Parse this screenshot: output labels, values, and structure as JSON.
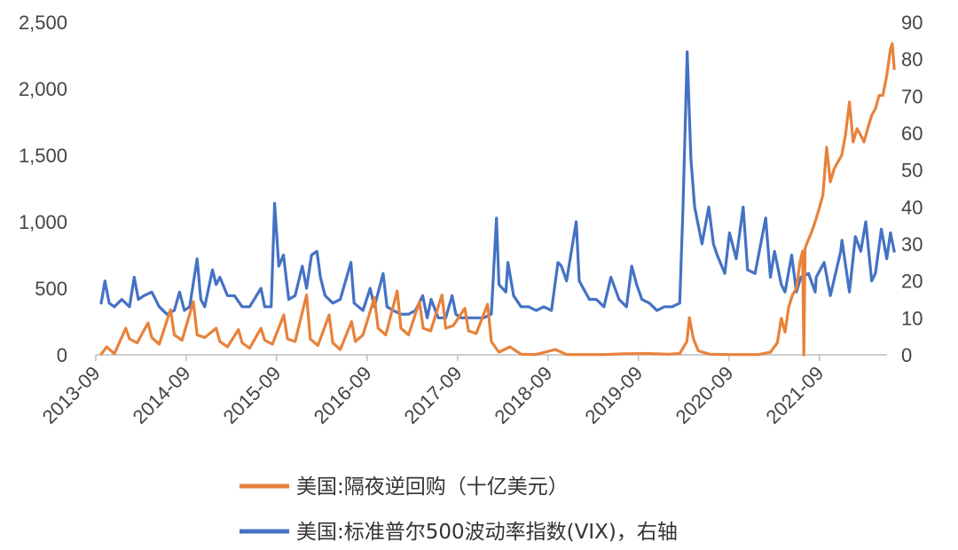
{
  "chart_data": {
    "type": "line",
    "title": "",
    "xlabel": "",
    "ylabel_left": "",
    "ylabel_right": "",
    "x_ticks": [
      "2013-09",
      "2014-09",
      "2015-09",
      "2016-09",
      "2017-09",
      "2018-09",
      "2019-09",
      "2020-09",
      "2021-09"
    ],
    "x_range": [
      "2013-09",
      "2022-06"
    ],
    "y_left": {
      "ticks": [
        0,
        500,
        1000,
        1500,
        2000,
        2500
      ],
      "tick_labels": [
        "0",
        "500",
        "1,000",
        "1,500",
        "2,000",
        "2,500"
      ],
      "range": [
        0,
        2500
      ]
    },
    "y_right": {
      "ticks": [
        0,
        10,
        20,
        30,
        40,
        50,
        60,
        70,
        80,
        90
      ],
      "tick_labels": [
        "0",
        "10",
        "20",
        "30",
        "40",
        "50",
        "60",
        "70",
        "80",
        "90"
      ],
      "range": [
        0,
        90
      ]
    },
    "grid": false,
    "legend_position": "bottom",
    "series": [
      {
        "name": "美国:隔夜逆回购（十亿美元）",
        "axis": "left",
        "color": "#E8823A",
        "points": [
          [
            "2013-09-23",
            5
          ],
          [
            "2013-10-15",
            60
          ],
          [
            "2013-11-15",
            8
          ],
          [
            "2013-12-31",
            200
          ],
          [
            "2014-01-15",
            120
          ],
          [
            "2014-02-15",
            90
          ],
          [
            "2014-03-31",
            240
          ],
          [
            "2014-04-15",
            130
          ],
          [
            "2014-05-15",
            80
          ],
          [
            "2014-06-30",
            340
          ],
          [
            "2014-07-15",
            150
          ],
          [
            "2014-08-15",
            110
          ],
          [
            "2014-09-30",
            400
          ],
          [
            "2014-10-15",
            150
          ],
          [
            "2014-11-15",
            130
          ],
          [
            "2014-12-31",
            200
          ],
          [
            "2015-01-15",
            100
          ],
          [
            "2015-02-15",
            60
          ],
          [
            "2015-03-31",
            190
          ],
          [
            "2015-04-15",
            90
          ],
          [
            "2015-05-15",
            50
          ],
          [
            "2015-06-30",
            200
          ],
          [
            "2015-07-15",
            110
          ],
          [
            "2015-08-15",
            80
          ],
          [
            "2015-09-30",
            300
          ],
          [
            "2015-10-15",
            120
          ],
          [
            "2015-11-15",
            100
          ],
          [
            "2015-12-31",
            450
          ],
          [
            "2016-01-15",
            120
          ],
          [
            "2016-02-15",
            70
          ],
          [
            "2016-03-31",
            300
          ],
          [
            "2016-04-15",
            90
          ],
          [
            "2016-05-15",
            40
          ],
          [
            "2016-06-30",
            250
          ],
          [
            "2016-07-15",
            100
          ],
          [
            "2016-08-15",
            150
          ],
          [
            "2016-09-30",
            430
          ],
          [
            "2016-10-15",
            200
          ],
          [
            "2016-11-15",
            150
          ],
          [
            "2016-12-31",
            480
          ],
          [
            "2017-01-15",
            200
          ],
          [
            "2017-02-15",
            150
          ],
          [
            "2017-03-31",
            400
          ],
          [
            "2017-04-15",
            200
          ],
          [
            "2017-05-15",
            180
          ],
          [
            "2017-06-30",
            450
          ],
          [
            "2017-07-15",
            200
          ],
          [
            "2017-08-15",
            220
          ],
          [
            "2017-09-30",
            350
          ],
          [
            "2017-10-15",
            180
          ],
          [
            "2017-11-15",
            160
          ],
          [
            "2017-12-31",
            380
          ],
          [
            "2018-01-15",
            100
          ],
          [
            "2018-02-15",
            20
          ],
          [
            "2018-03-31",
            60
          ],
          [
            "2018-05-15",
            5
          ],
          [
            "2018-07-15",
            3
          ],
          [
            "2018-09-30",
            40
          ],
          [
            "2018-11-15",
            3
          ],
          [
            "2019-01-15",
            2
          ],
          [
            "2019-04-15",
            2
          ],
          [
            "2019-06-30",
            8
          ],
          [
            "2019-09-30",
            10
          ],
          [
            "2019-12-31",
            5
          ],
          [
            "2020-02-15",
            10
          ],
          [
            "2020-03-15",
            100
          ],
          [
            "2020-03-25",
            280
          ],
          [
            "2020-04-10",
            120
          ],
          [
            "2020-04-30",
            30
          ],
          [
            "2020-06-15",
            5
          ],
          [
            "2020-09-15",
            2
          ],
          [
            "2020-12-31",
            3
          ],
          [
            "2021-02-15",
            20
          ],
          [
            "2021-03-15",
            90
          ],
          [
            "2021-03-31",
            275
          ],
          [
            "2021-04-15",
            170
          ],
          [
            "2021-04-30",
            360
          ],
          [
            "2021-05-15",
            450
          ],
          [
            "2021-05-31",
            500
          ],
          [
            "2021-06-15",
            700
          ],
          [
            "2021-06-25",
            780
          ],
          [
            "2021-06-30",
            0
          ],
          [
            "2021-07-05",
            800
          ],
          [
            "2021-07-15",
            850
          ],
          [
            "2021-07-31",
            920
          ],
          [
            "2021-08-15",
            1000
          ],
          [
            "2021-08-31",
            1100
          ],
          [
            "2021-09-15",
            1200
          ],
          [
            "2021-09-30",
            1560
          ],
          [
            "2021-10-15",
            1300
          ],
          [
            "2021-10-31",
            1400
          ],
          [
            "2021-11-15",
            1450
          ],
          [
            "2021-11-30",
            1500
          ],
          [
            "2021-12-15",
            1650
          ],
          [
            "2021-12-31",
            1900
          ],
          [
            "2022-01-15",
            1600
          ],
          [
            "2022-01-31",
            1700
          ],
          [
            "2022-02-15",
            1650
          ],
          [
            "2022-02-28",
            1600
          ],
          [
            "2022-03-15",
            1700
          ],
          [
            "2022-03-31",
            1800
          ],
          [
            "2022-04-15",
            1850
          ],
          [
            "2022-04-30",
            1950
          ],
          [
            "2022-05-15",
            1950
          ],
          [
            "2022-05-31",
            2100
          ],
          [
            "2022-06-15",
            2300
          ],
          [
            "2022-06-22",
            2340
          ],
          [
            "2022-06-30",
            2150
          ]
        ]
      },
      {
        "name": "美国:标准普尔500波动率指数(VIX)，右轴",
        "axis": "right",
        "color": "#4472C4",
        "points": [
          [
            "2013-09-23",
            14
          ],
          [
            "2013-10-08",
            20
          ],
          [
            "2013-10-25",
            14
          ],
          [
            "2013-11-15",
            13
          ],
          [
            "2013-12-15",
            15
          ],
          [
            "2014-01-15",
            13
          ],
          [
            "2014-02-03",
            21
          ],
          [
            "2014-02-20",
            15
          ],
          [
            "2014-03-15",
            16
          ],
          [
            "2014-04-15",
            17
          ],
          [
            "2014-05-15",
            13
          ],
          [
            "2014-06-15",
            11
          ],
          [
            "2014-07-15",
            12
          ],
          [
            "2014-08-05",
            17
          ],
          [
            "2014-08-25",
            12
          ],
          [
            "2014-09-15",
            13
          ],
          [
            "2014-10-15",
            26
          ],
          [
            "2014-10-30",
            15
          ],
          [
            "2014-11-15",
            13
          ],
          [
            "2014-12-16",
            23
          ],
          [
            "2014-12-31",
            19
          ],
          [
            "2015-01-15",
            21
          ],
          [
            "2015-02-15",
            16
          ],
          [
            "2015-03-15",
            16
          ],
          [
            "2015-04-15",
            13
          ],
          [
            "2015-05-15",
            13
          ],
          [
            "2015-06-30",
            18
          ],
          [
            "2015-07-15",
            13
          ],
          [
            "2015-08-10",
            13
          ],
          [
            "2015-08-24",
            41
          ],
          [
            "2015-09-10",
            24
          ],
          [
            "2015-09-29",
            27
          ],
          [
            "2015-10-20",
            15
          ],
          [
            "2015-11-15",
            16
          ],
          [
            "2015-12-14",
            24
          ],
          [
            "2015-12-31",
            18
          ],
          [
            "2016-01-20",
            27
          ],
          [
            "2016-02-11",
            28
          ],
          [
            "2016-02-25",
            21
          ],
          [
            "2016-03-15",
            16
          ],
          [
            "2016-04-15",
            14
          ],
          [
            "2016-05-15",
            15
          ],
          [
            "2016-06-27",
            25
          ],
          [
            "2016-07-10",
            14
          ],
          [
            "2016-08-15",
            12
          ],
          [
            "2016-09-13",
            18
          ],
          [
            "2016-09-30",
            13
          ],
          [
            "2016-11-04",
            22
          ],
          [
            "2016-11-20",
            13
          ],
          [
            "2016-12-15",
            12
          ],
          [
            "2017-01-15",
            11
          ],
          [
            "2017-02-15",
            11
          ],
          [
            "2017-03-15",
            12
          ],
          [
            "2017-04-13",
            16
          ],
          [
            "2017-05-01",
            10
          ],
          [
            "2017-05-17",
            15
          ],
          [
            "2017-06-15",
            10
          ],
          [
            "2017-07-15",
            10
          ],
          [
            "2017-08-10",
            16
          ],
          [
            "2017-08-25",
            11
          ],
          [
            "2017-09-15",
            10
          ],
          [
            "2017-10-15",
            10
          ],
          [
            "2017-11-15",
            10
          ],
          [
            "2017-12-15",
            10
          ],
          [
            "2018-01-15",
            11
          ],
          [
            "2018-02-05",
            37
          ],
          [
            "2018-02-15",
            19
          ],
          [
            "2018-03-15",
            17
          ],
          [
            "2018-03-23",
            25
          ],
          [
            "2018-04-15",
            16
          ],
          [
            "2018-05-15",
            13
          ],
          [
            "2018-06-15",
            13
          ],
          [
            "2018-07-15",
            12
          ],
          [
            "2018-08-15",
            13
          ],
          [
            "2018-09-15",
            12
          ],
          [
            "2018-10-11",
            25
          ],
          [
            "2018-10-25",
            24
          ],
          [
            "2018-11-15",
            20
          ],
          [
            "2018-12-24",
            36
          ],
          [
            "2019-01-05",
            20
          ],
          [
            "2019-02-15",
            15
          ],
          [
            "2019-03-15",
            15
          ],
          [
            "2019-04-15",
            13
          ],
          [
            "2019-05-13",
            21
          ],
          [
            "2019-06-15",
            15
          ],
          [
            "2019-07-15",
            13
          ],
          [
            "2019-08-05",
            24
          ],
          [
            "2019-08-25",
            19
          ],
          [
            "2019-09-15",
            15
          ],
          [
            "2019-10-15",
            14
          ],
          [
            "2019-11-15",
            12
          ],
          [
            "2019-12-15",
            13
          ],
          [
            "2020-01-15",
            13
          ],
          [
            "2020-02-15",
            14
          ],
          [
            "2020-02-28",
            40
          ],
          [
            "2020-03-16",
            82
          ],
          [
            "2020-03-31",
            53
          ],
          [
            "2020-04-15",
            40
          ],
          [
            "2020-05-15",
            30
          ],
          [
            "2020-06-11",
            40
          ],
          [
            "2020-06-30",
            30
          ],
          [
            "2020-07-15",
            27
          ],
          [
            "2020-08-15",
            22
          ],
          [
            "2020-09-03",
            33
          ],
          [
            "2020-09-30",
            26
          ],
          [
            "2020-10-28",
            40
          ],
          [
            "2020-11-15",
            23
          ],
          [
            "2020-12-15",
            22
          ],
          [
            "2021-01-27",
            37
          ],
          [
            "2021-02-15",
            21
          ],
          [
            "2021-03-04",
            28
          ],
          [
            "2021-03-31",
            19
          ],
          [
            "2021-04-15",
            17
          ],
          [
            "2021-05-12",
            27
          ],
          [
            "2021-05-31",
            17
          ],
          [
            "2021-06-18",
            21
          ],
          [
            "2021-07-19",
            22
          ],
          [
            "2021-08-15",
            17
          ],
          [
            "2021-08-19",
            21
          ],
          [
            "2021-09-20",
            25
          ],
          [
            "2021-10-15",
            16
          ],
          [
            "2021-11-26",
            28
          ],
          [
            "2021-12-01",
            31
          ],
          [
            "2021-12-31",
            17
          ],
          [
            "2022-01-24",
            32
          ],
          [
            "2022-02-15",
            28
          ],
          [
            "2022-03-07",
            36
          ],
          [
            "2022-03-31",
            20
          ],
          [
            "2022-04-15",
            22
          ],
          [
            "2022-05-09",
            34
          ],
          [
            "2022-05-31",
            26
          ],
          [
            "2022-06-15",
            33
          ],
          [
            "2022-06-30",
            28
          ]
        ]
      }
    ]
  }
}
